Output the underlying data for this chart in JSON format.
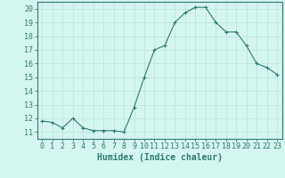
{
  "x": [
    0,
    1,
    2,
    3,
    4,
    5,
    6,
    7,
    8,
    9,
    10,
    11,
    12,
    13,
    14,
    15,
    16,
    17,
    18,
    19,
    20,
    21,
    22,
    23
  ],
  "y": [
    11.8,
    11.7,
    11.3,
    12.0,
    11.3,
    11.1,
    11.1,
    11.1,
    11.0,
    12.8,
    15.0,
    17.0,
    17.3,
    19.0,
    19.7,
    20.1,
    20.1,
    19.0,
    18.3,
    18.3,
    17.3,
    16.0,
    15.7,
    15.2
  ],
  "line_color": "#2e7d6e",
  "marker": "+",
  "marker_size": 3,
  "bg_color": "#d4f5f0",
  "grid_color": "#c0e0da",
  "xlabel": "Humidex (Indice chaleur)",
  "xlabel_fontsize": 7,
  "tick_fontsize": 6,
  "ylim": [
    10.5,
    20.5
  ],
  "xlim": [
    -0.5,
    23.5
  ],
  "yticks": [
    11,
    12,
    13,
    14,
    15,
    16,
    17,
    18,
    19,
    20
  ],
  "xticks": [
    0,
    1,
    2,
    3,
    4,
    5,
    6,
    7,
    8,
    9,
    10,
    11,
    12,
    13,
    14,
    15,
    16,
    17,
    18,
    19,
    20,
    21,
    22,
    23
  ]
}
